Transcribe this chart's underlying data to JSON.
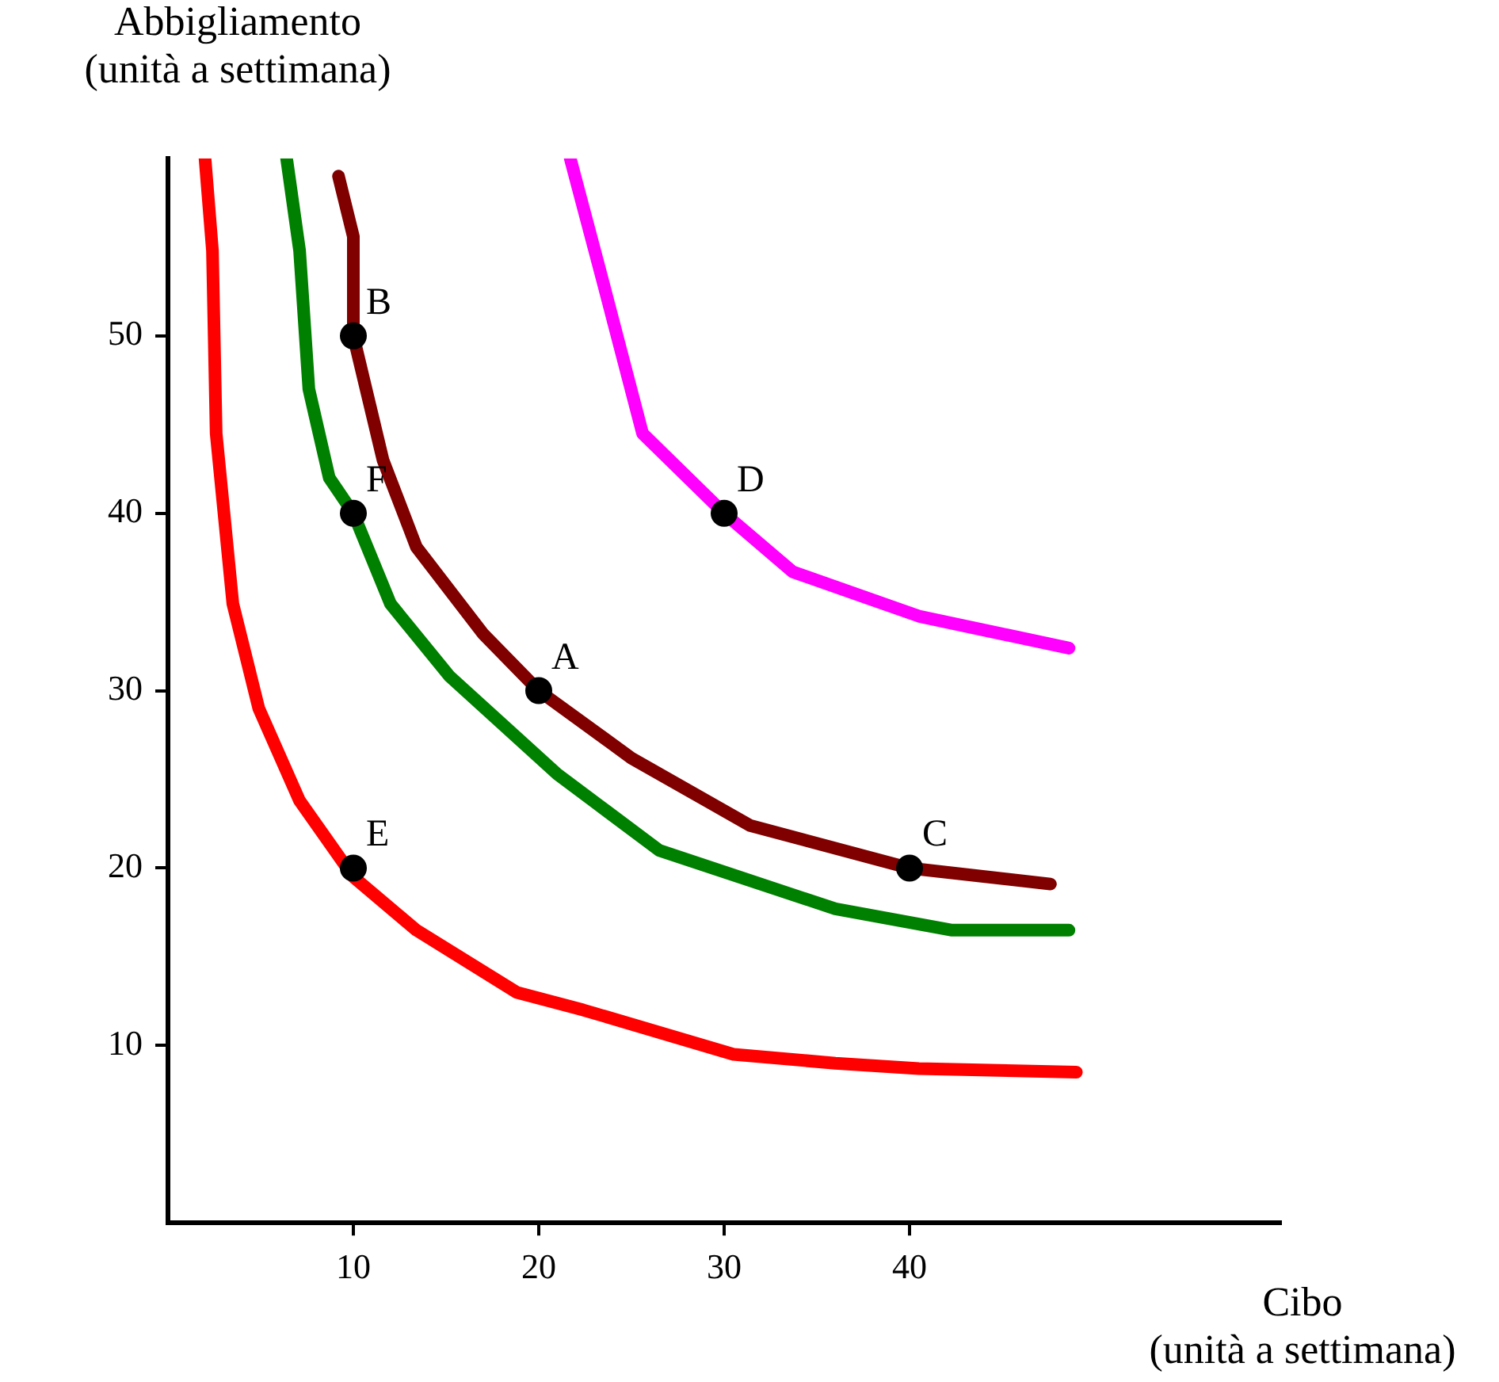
{
  "chart_data": {
    "type": "line",
    "xlabel": "Cibo\n(unità a settimana)",
    "ylabel": "Abbigliamento\n(unità a settimana)",
    "xlim": [
      0,
      60
    ],
    "ylim": [
      0,
      60
    ],
    "xticks": [
      10,
      20,
      30,
      40
    ],
    "yticks": [
      10,
      20,
      30,
      40,
      50
    ],
    "grid": false,
    "legend": false,
    "marker": "none",
    "line_style": "solid",
    "series": [
      {
        "color": "#ff0000",
        "x": [
          2,
          2.4,
          2.6,
          3.5,
          4.9,
          7.1,
          10,
          13.4,
          18.8,
          22.4,
          30.5,
          36,
          40.5,
          49
        ],
        "values": [
          60,
          54.8,
          44.5,
          34.9,
          29,
          23.8,
          19.5,
          16.5,
          13,
          12,
          9.5,
          9,
          8.7,
          8.5
        ]
      },
      {
        "color": "#008000",
        "x": [
          6.4,
          7.1,
          7.6,
          8.7,
          10,
          12,
          15.2,
          21,
          26.5,
          36,
          42.3,
          48.6
        ],
        "values": [
          60,
          54.8,
          47,
          42,
          40,
          34.9,
          30.8,
          25.3,
          21,
          17.7,
          16.5,
          16.5
        ]
      },
      {
        "color": "#800000",
        "x": [
          9.2,
          10,
          10,
          11.6,
          13.4,
          17,
          20,
          25,
          31.4,
          40,
          47.6
        ],
        "values": [
          59,
          55.6,
          50,
          43,
          38.1,
          33.2,
          30,
          26.2,
          22.4,
          20,
          19.1
        ]
      },
      {
        "color": "#ff00ff",
        "x": [
          21.7,
          23.4,
          25.6,
          30,
          33.7,
          40.5,
          48.6
        ],
        "values": [
          60,
          53.3,
          44.5,
          40,
          36.7,
          34.2,
          32.4
        ]
      },
      {
        "type": "scatter",
        "color": "#000000",
        "marker": "circle",
        "x": [
          20,
          10,
          40,
          30,
          10,
          10
        ],
        "values": [
          30,
          50,
          20,
          40,
          20,
          40
        ]
      }
    ],
    "annotations": [
      {
        "text": "A",
        "x": 20,
        "y": 30
      },
      {
        "text": "B",
        "x": 10,
        "y": 50
      },
      {
        "text": "C",
        "x": 40,
        "y": 20
      },
      {
        "text": "D",
        "x": 30,
        "y": 40
      },
      {
        "text": "E",
        "x": 10,
        "y": 20
      },
      {
        "text": "F",
        "x": 10,
        "y": 40
      }
    ]
  }
}
